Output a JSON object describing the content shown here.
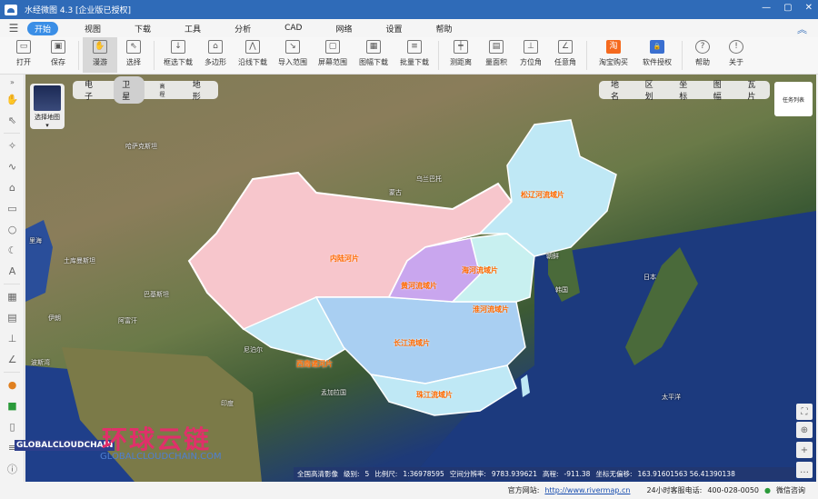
{
  "window": {
    "title": "水经微图 4.3 [企业版已授权]",
    "controls": [
      "—",
      "▢",
      "✕"
    ]
  },
  "menu": {
    "items": [
      "开始",
      "视图",
      "下载",
      "工具",
      "分析",
      "CAD",
      "网络",
      "设置",
      "帮助"
    ],
    "active": 0
  },
  "toolbar": {
    "items": [
      {
        "label": "打开",
        "icon": "folder-icon"
      },
      {
        "label": "保存",
        "icon": "save-icon"
      },
      {
        "label": "漫游",
        "icon": "hand-icon",
        "selected": true
      },
      {
        "label": "选择",
        "icon": "cursor-icon"
      },
      {
        "label": "框选下载",
        "icon": "rect-download-icon"
      },
      {
        "label": "多边形",
        "icon": "polygon-icon"
      },
      {
        "label": "沿线下载",
        "icon": "line-download-icon"
      },
      {
        "label": "导入范围",
        "icon": "import-icon"
      },
      {
        "label": "屏幕范围",
        "icon": "screen-icon"
      },
      {
        "label": "图幅下载",
        "icon": "sheet-icon"
      },
      {
        "label": "批量下载",
        "icon": "batch-icon"
      },
      {
        "label": "测距离",
        "icon": "ruler-icon"
      },
      {
        "label": "量面积",
        "icon": "area-icon"
      },
      {
        "label": "方位角",
        "icon": "azimuth-icon"
      },
      {
        "label": "任意角",
        "icon": "angle-icon"
      },
      {
        "label": "淘宝购买",
        "icon": "taobao-icon"
      },
      {
        "label": "软件授权",
        "icon": "license-icon"
      },
      {
        "label": "帮助",
        "icon": "help-icon"
      },
      {
        "label": "关于",
        "icon": "info-icon"
      }
    ]
  },
  "map_types": {
    "items": [
      "电子",
      "卫星",
      "高程",
      "地形"
    ],
    "active": 1
  },
  "basemap": {
    "label": "选择地图"
  },
  "search_tabs": {
    "items": [
      "地名",
      "区划",
      "坐标",
      "图幅",
      "瓦片"
    ]
  },
  "task_list": {
    "label": "任务列表"
  },
  "regions": [
    "内陆河片",
    "黄河流域片",
    "长江流域片",
    "西南诸河片",
    "珠江流域片",
    "松辽河流域片",
    "海河流域片",
    "淮河流域片"
  ],
  "places": [
    "蒙古",
    "乌兰巴托",
    "朝鲜",
    "韩国",
    "日本",
    "印度",
    "尼泊尔",
    "孟加拉国",
    "哈萨克斯坦",
    "土库曼斯坦",
    "伊朗",
    "阿富汗",
    "巴基斯坦",
    "里海",
    "波斯湾",
    "太平洋"
  ],
  "status": {
    "source": "全国高清影像",
    "level_label": "级别:",
    "level": "5",
    "scale_label": "比例尺:",
    "scale": "1:36978595",
    "resolution_label": "空间分辨率:",
    "resolution": "9783.939621",
    "elevation_label": "高程:",
    "elevation": "-911.38",
    "coord_label": "坐标无偏移:",
    "coords": "163.91601563  56.41390138"
  },
  "footer": {
    "site_label": "官方网站:",
    "site": "http://www.rivermap.cn",
    "phone_label": "24小时客服电话:",
    "phone": "400-028-0050",
    "wechat": "微信咨询"
  },
  "watermark": {
    "cn": "环球云链",
    "en": "GLOBALCLOUDCHAIN.COM",
    "logo": "GLOBALCLOUDCHAIN"
  },
  "colors": {
    "titlebar": "#2f6bb8",
    "accent": "#3a8ee6",
    "inland": "#f7c6cc",
    "basin": "#bfe8f5",
    "yellow_river": "#c9a6ee"
  }
}
